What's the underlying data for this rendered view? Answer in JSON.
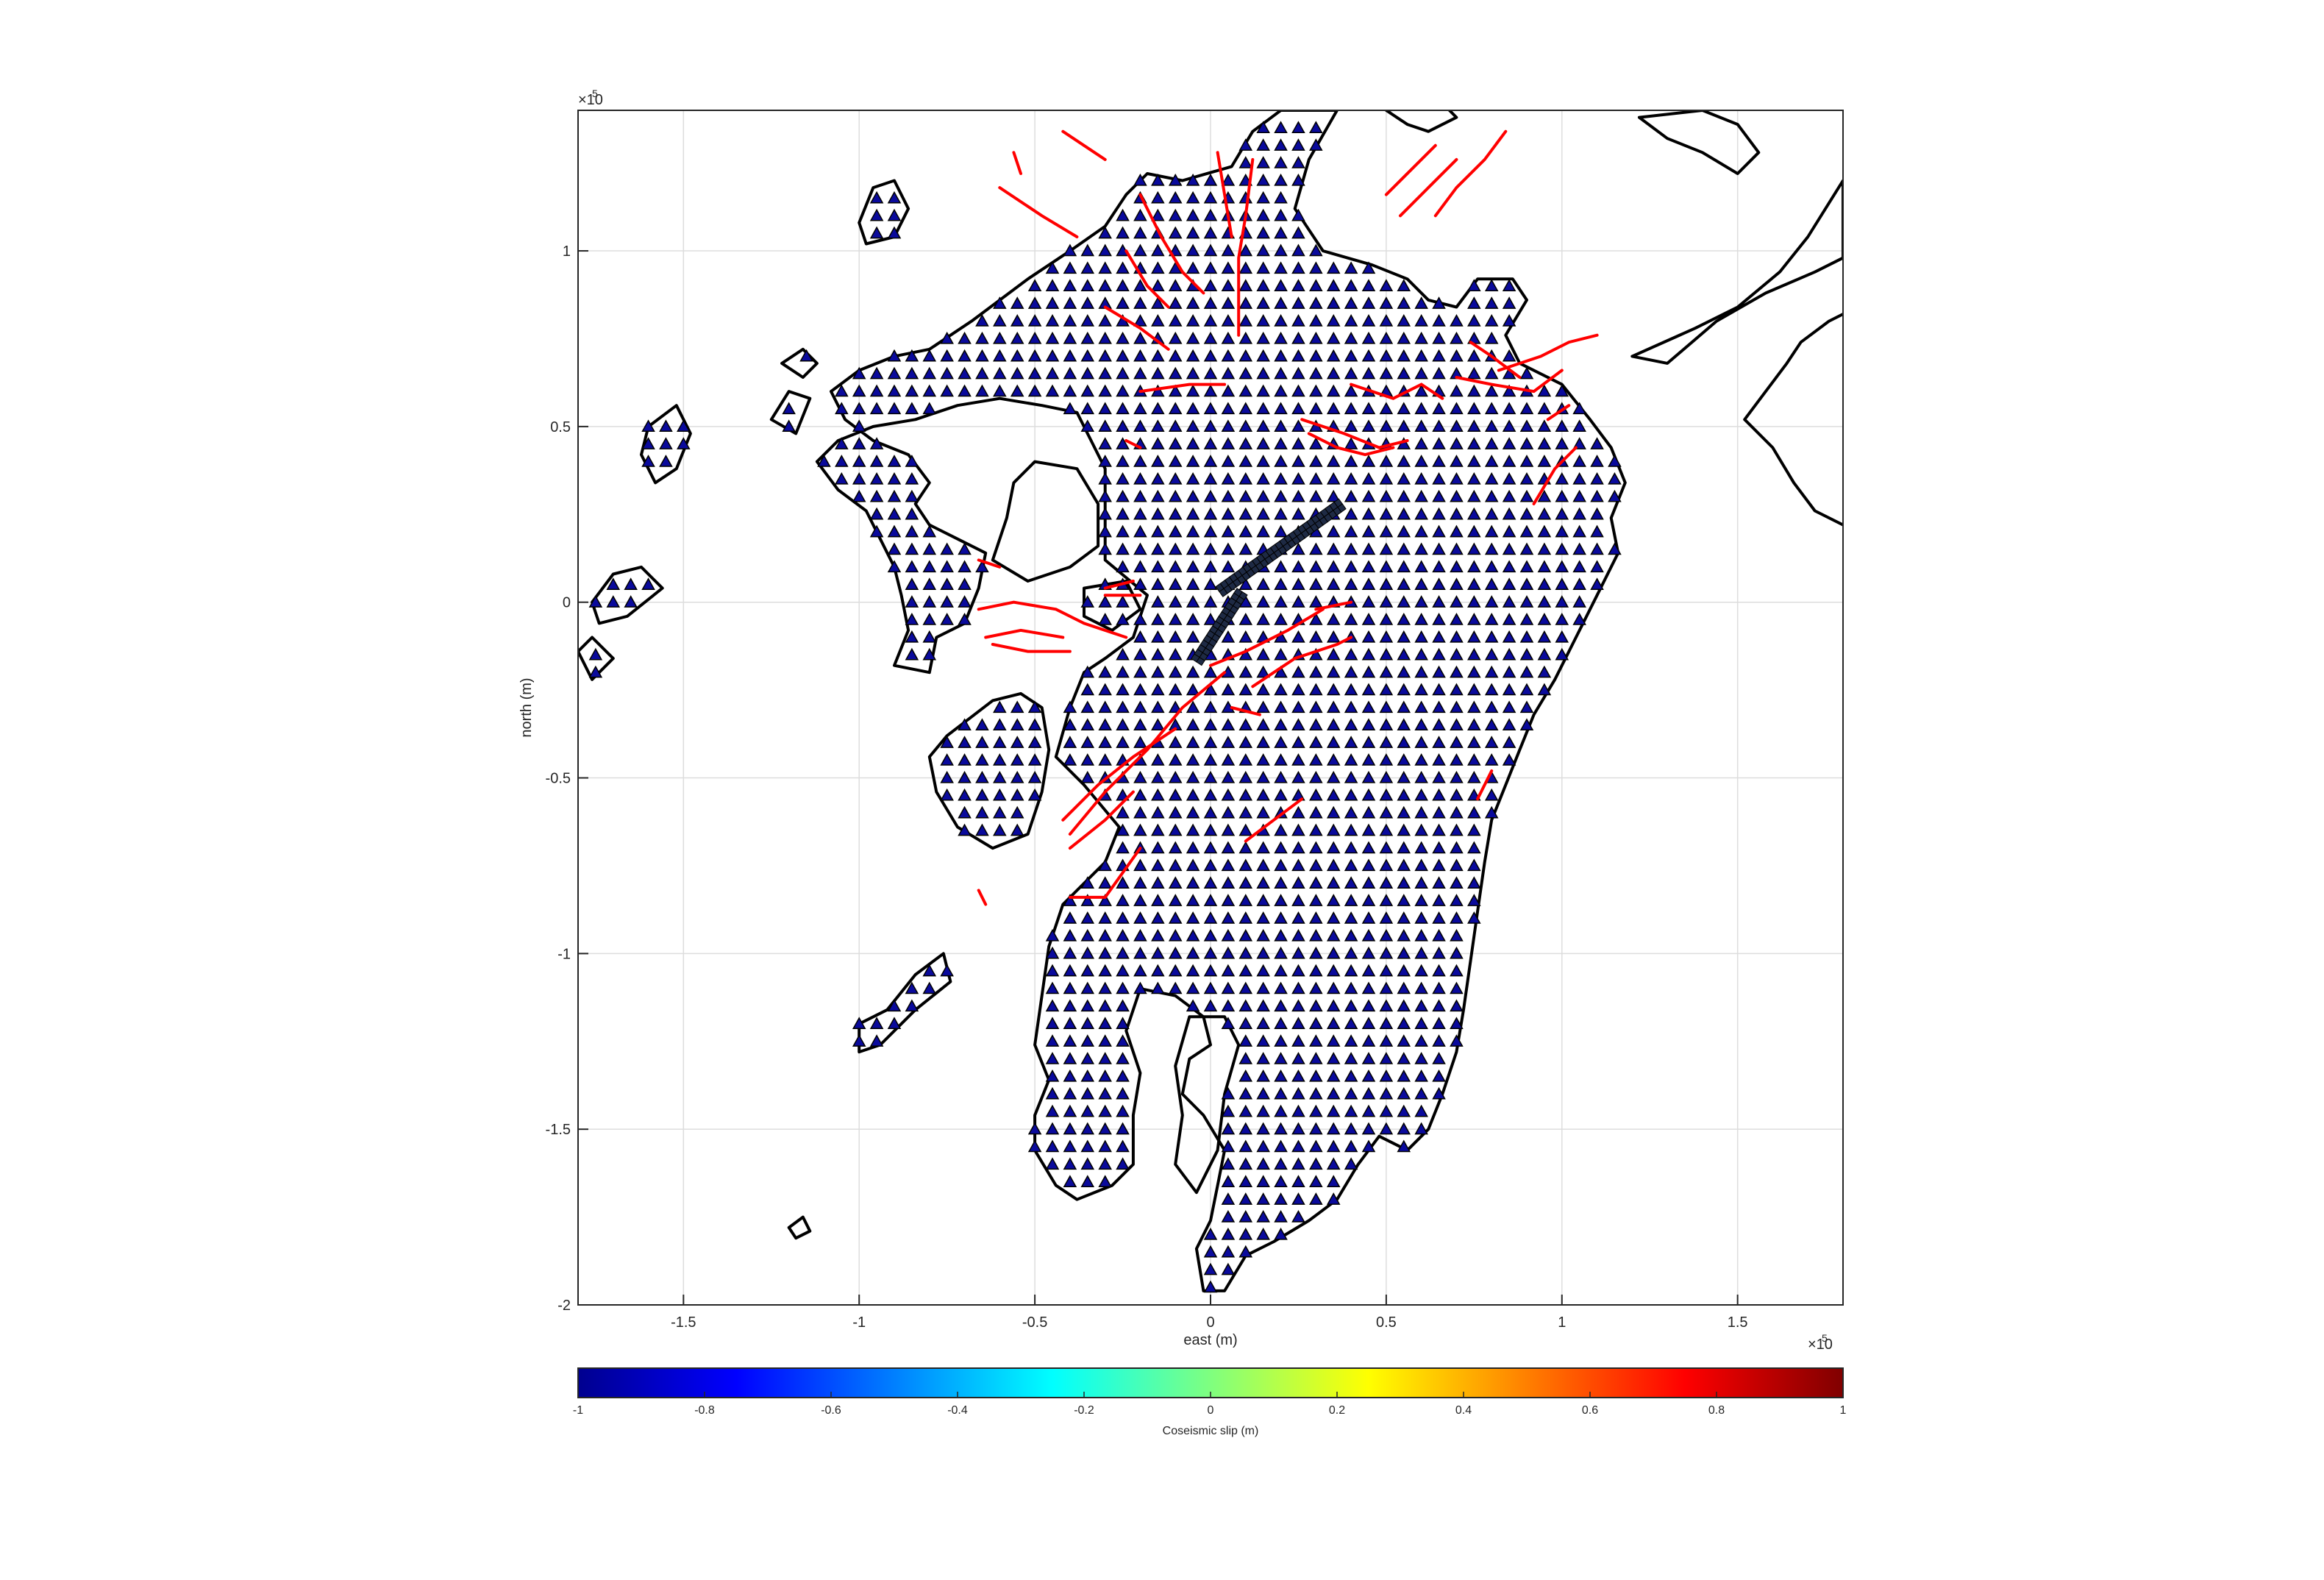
{
  "chart_data": {
    "type": "scatter",
    "title": "",
    "xlabel": "east (m)",
    "ylabel": "north (m)",
    "x_exponent_label": "×10",
    "x_exponent": "5",
    "y_exponent_label": "×10",
    "y_exponent": "5",
    "xlim": [
      -180000,
      180000
    ],
    "ylim": [
      -200000,
      140000
    ],
    "x_ticks": [
      -150000,
      -100000,
      -50000,
      0,
      50000,
      100000,
      150000
    ],
    "x_tick_labels": [
      "-1.5",
      "-1",
      "-0.5",
      "0",
      "0.5",
      "1",
      "1.5"
    ],
    "y_ticks": [
      -200000,
      -150000,
      -100000,
      -50000,
      0,
      50000,
      100000
    ],
    "y_tick_labels": [
      "-2",
      "-1.5",
      "-1",
      "-0.5",
      "0",
      "0.5",
      "1"
    ],
    "grid": true,
    "colors": {
      "station_fill": "#0a0a9c",
      "station_edge": "#000000",
      "fault_trace": "#ff0000",
      "coastline": "#000000",
      "fault_patch": "#1e2a44"
    },
    "colorbar": {
      "label": "Coseismic slip (m)",
      "limits": [
        -1,
        1
      ],
      "ticks": [
        -1,
        -0.8,
        -0.6,
        -0.4,
        -0.2,
        0,
        0.2,
        0.4,
        0.6,
        0.8,
        1
      ],
      "tick_labels": [
        "-1",
        "-0.8",
        "-0.6",
        "-0.4",
        "-0.2",
        "0",
        "0.2",
        "0.4",
        "0.6",
        "0.8",
        "1"
      ],
      "colormap": "jet",
      "orientation": "horizontal"
    },
    "station_grid": {
      "marker": "triangle",
      "spacing_m": 5000,
      "coverage": "onshore Kyushu",
      "slip_value_m": -1
    },
    "fault_model": [
      {
        "segment": "northeast",
        "start": [
          2500,
          3000
        ],
        "end": [
          37500,
          28000
        ]
      },
      {
        "segment": "southwest",
        "start": [
          -4000,
          -17000
        ],
        "end": [
          9000,
          3000
        ]
      }
    ]
  }
}
